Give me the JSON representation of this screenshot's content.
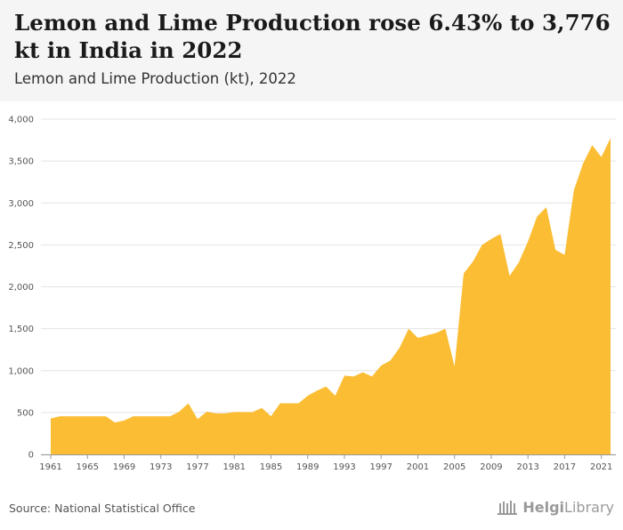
{
  "header": {
    "title": "Lemon and Lime Production rose 6.43% to 3,776 kt in India in 2022",
    "subtitle": "Lemon and Lime Production (kt), 2022"
  },
  "footer": {
    "source": "Source: National Statistical Office",
    "brand_bold": "Helgi",
    "brand_rest": "Library"
  },
  "colors": {
    "fill": "#fbbd33",
    "grid": "#e4e4e4",
    "axis": "#999999"
  },
  "chart_data": {
    "type": "area",
    "title": "Lemon and Lime Production (kt), 2022",
    "xlabel": "",
    "ylabel": "",
    "ylim": [
      0,
      4000
    ],
    "xlim": [
      1961,
      2022
    ],
    "grid": true,
    "legend": "none",
    "y_ticks": [
      0,
      500,
      1000,
      1500,
      2000,
      2500,
      3000,
      3500,
      4000
    ],
    "y_tick_labels": [
      "0",
      "500",
      "1,000",
      "1,500",
      "2,000",
      "2,500",
      "3,000",
      "3,500",
      "4,000"
    ],
    "x_ticks": [
      1961,
      1965,
      1969,
      1973,
      1977,
      1981,
      1985,
      1989,
      1993,
      1997,
      2001,
      2005,
      2009,
      2013,
      2017,
      2021
    ],
    "x_tick_labels": [
      "1961",
      "1965",
      "1969",
      "1973",
      "1977",
      "1981",
      "1985",
      "1989",
      "1993",
      "1997",
      "2001",
      "2005",
      "2009",
      "2013",
      "2017",
      "2021"
    ],
    "x": [
      1961,
      1962,
      1963,
      1964,
      1965,
      1966,
      1967,
      1968,
      1969,
      1970,
      1971,
      1972,
      1973,
      1974,
      1975,
      1976,
      1977,
      1978,
      1979,
      1980,
      1981,
      1982,
      1983,
      1984,
      1985,
      1986,
      1987,
      1988,
      1989,
      1990,
      1991,
      1992,
      1993,
      1994,
      1995,
      1996,
      1997,
      1998,
      1999,
      2000,
      2001,
      2002,
      2003,
      2004,
      2005,
      2006,
      2007,
      2008,
      2009,
      2010,
      2011,
      2012,
      2013,
      2014,
      2015,
      2016,
      2017,
      2018,
      2019,
      2020,
      2021,
      2022
    ],
    "series": [
      {
        "values": [
          430,
          455,
          455,
          455,
          455,
          455,
          455,
          380,
          405,
          455,
          455,
          455,
          455,
          455,
          510,
          610,
          420,
          510,
          490,
          490,
          505,
          505,
          505,
          555,
          455,
          610,
          610,
          610,
          700,
          760,
          810,
          700,
          940,
          930,
          980,
          930,
          1060,
          1120,
          1270,
          1500,
          1390,
          1420,
          1450,
          1500,
          1050,
          2160,
          2300,
          2500,
          2570,
          2630,
          2130,
          2290,
          2540,
          2840,
          2950,
          2440,
          2380,
          3150,
          3470,
          3690,
          3548,
          3776
        ]
      }
    ]
  }
}
